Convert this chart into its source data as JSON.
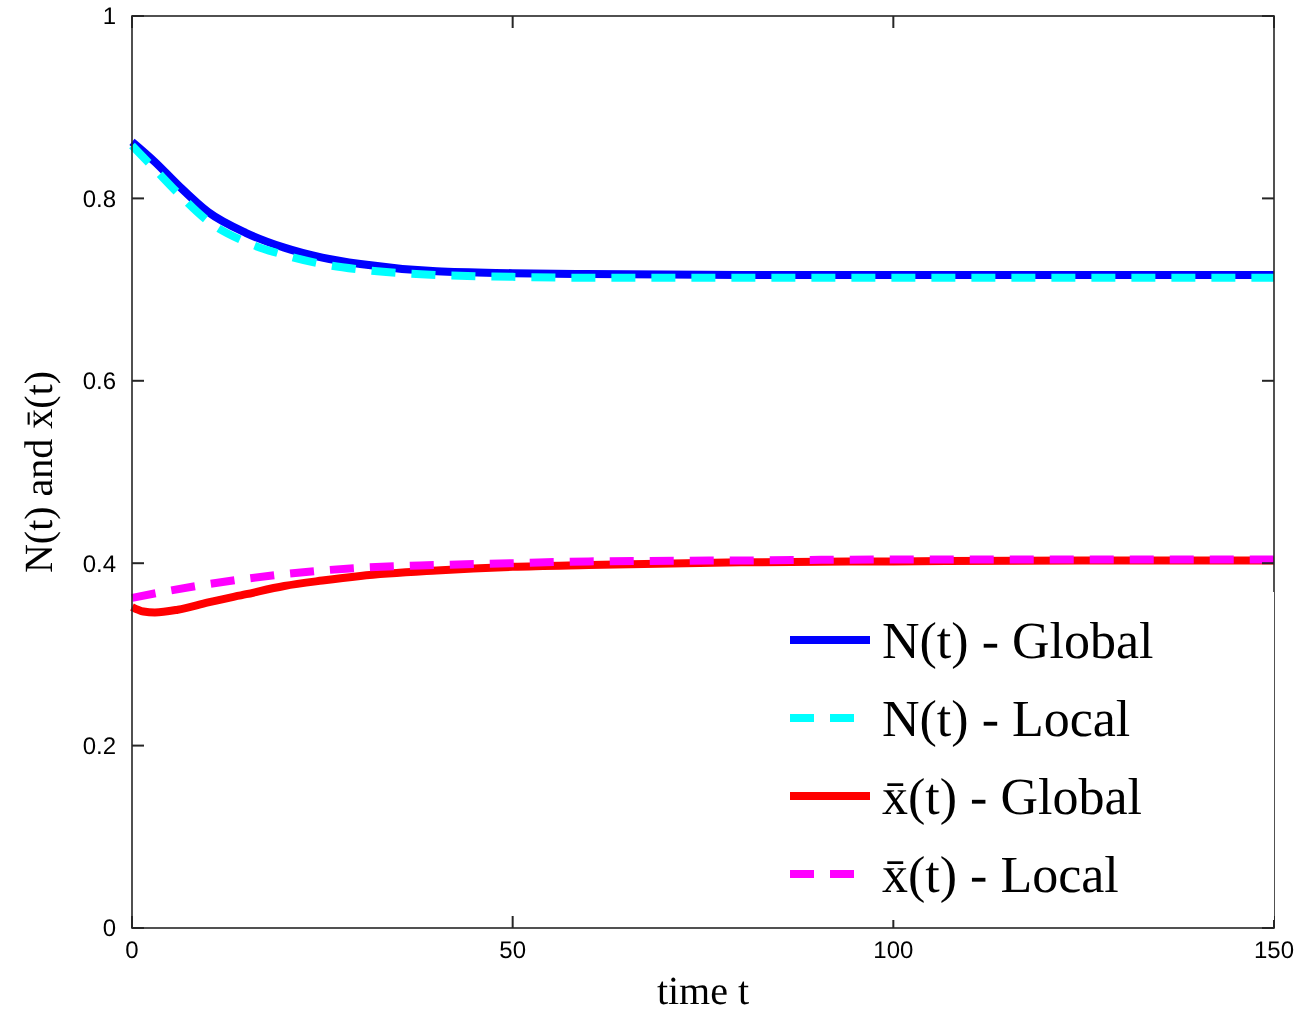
{
  "chart_data": {
    "type": "line",
    "xlabel": "time t",
    "ylabel": "N(t) and x̄(t)",
    "xlim": [
      0,
      150
    ],
    "ylim": [
      0,
      1
    ],
    "xticks": [
      0,
      50,
      100,
      150
    ],
    "yticks": [
      0,
      0.2,
      0.4,
      0.6,
      0.8,
      1
    ],
    "grid": false,
    "legend": "bottom right",
    "marker": "none",
    "series": [
      {
        "name": "N(t) - Global",
        "color": "#0000ff",
        "line_style": "solid",
        "x": [
          0,
          3,
          6,
          10,
          15,
          20,
          25,
          30,
          40,
          50,
          60,
          80,
          100,
          125,
          150
        ],
        "values": [
          0.862,
          0.84,
          0.815,
          0.785,
          0.762,
          0.746,
          0.735,
          0.728,
          0.72,
          0.718,
          0.717,
          0.716,
          0.716,
          0.716,
          0.716
        ]
      },
      {
        "name": "N(t) - Local",
        "color": "#00ffff",
        "line_style": "dashed",
        "x": [
          0,
          3,
          6,
          10,
          15,
          20,
          25,
          30,
          40,
          50,
          60,
          80,
          100,
          125,
          150
        ],
        "values": [
          0.858,
          0.832,
          0.806,
          0.775,
          0.752,
          0.738,
          0.728,
          0.722,
          0.716,
          0.714,
          0.713,
          0.713,
          0.713,
          0.713,
          0.713
        ]
      },
      {
        "name": "x̄(t) - Global",
        "color": "#ff0000",
        "line_style": "solid",
        "x": [
          0,
          1.5,
          3,
          6,
          10,
          15,
          20,
          25,
          30,
          40,
          50,
          60,
          80,
          100,
          125,
          150
        ],
        "values": [
          0.352,
          0.347,
          0.346,
          0.349,
          0.357,
          0.366,
          0.375,
          0.381,
          0.386,
          0.392,
          0.396,
          0.398,
          0.401,
          0.402,
          0.403,
          0.403
        ]
      },
      {
        "name": "x̄(t) - Local",
        "color": "#ff00ff",
        "line_style": "dashed",
        "x": [
          0,
          5,
          10,
          15,
          20,
          25,
          30,
          40,
          50,
          60,
          80,
          100,
          125,
          150
        ],
        "values": [
          0.362,
          0.37,
          0.377,
          0.383,
          0.388,
          0.392,
          0.395,
          0.398,
          0.4,
          0.402,
          0.403,
          0.404,
          0.404,
          0.404
        ]
      }
    ]
  }
}
